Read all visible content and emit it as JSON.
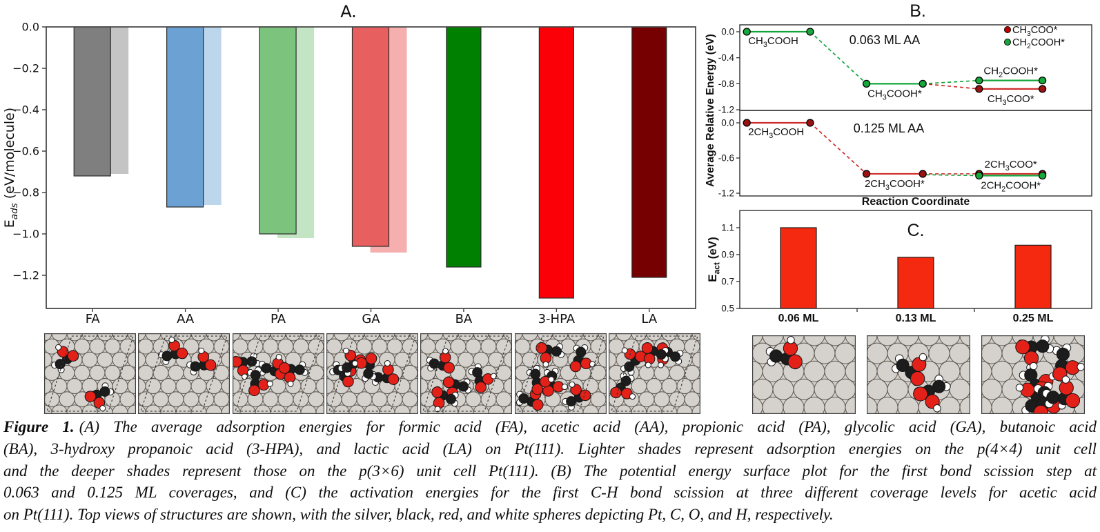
{
  "caption": {
    "lead": "Figure 1.",
    "lines": [
      "(A) The average adsorption energies for formic acid (FA), acetic acid (AA), propionic acid (PA), glycolic acid (GA), butanoic acid",
      "(BA), 3-hydroxy propanoic acid (3-HPA), and lactic acid (LA) on Pt(111). Lighter shades represent adsorption energies on the p(4×4) unit cell",
      "and the deeper shades represent those on the p(3×6) unit cell Pt(111). (B) The potential energy surface plot for the first bond scission step at",
      "0.063 and 0.125 ML coverages, and (C) the activation energies for the first C-H bond scission at three different coverage levels for acetic acid",
      "on Pt(111). Top views of structures are shown, with the silver, black, red, and white spheres depicting Pt, C, O, and H, respectively."
    ]
  },
  "chart_data": [
    {
      "id": "A",
      "type": "bar",
      "panel_label": "A.",
      "ylabel": {
        "prefix": "E",
        "sub": "ads",
        "suffix": " (eV/molecule)"
      },
      "ylim": [
        -1.36,
        0
      ],
      "yticks": [
        0.0,
        -0.2,
        -0.4,
        -0.6,
        -0.8,
        -1.0,
        -1.2
      ],
      "ytick_labels": [
        "0.0",
        "−0.2",
        "−0.4",
        "−0.6",
        "−0.8",
        "−1.0",
        "−1.2"
      ],
      "categories": [
        "FA",
        "AA",
        "PA",
        "GA",
        "BA",
        "3-HPA",
        "LA"
      ],
      "series": [
        {
          "name": "deeper shade p(3×6)",
          "values": [
            -0.72,
            -0.87,
            -1.0,
            -1.06,
            -1.16,
            -1.31,
            -1.21
          ],
          "colors": [
            "#7f7f7f",
            "#6ba1d3",
            "#7cc47d",
            "#e85f5f",
            "#008000",
            "#fb0007",
            "#760001"
          ]
        },
        {
          "name": "lighter shade p(4×4)",
          "values": [
            -0.71,
            -0.86,
            -1.02,
            -1.09,
            null,
            null,
            null
          ],
          "colors": [
            "#c4c4c4",
            "#bcd6ec",
            "#c3e5c3",
            "#f5afaf",
            null,
            null,
            null
          ]
        }
      ],
      "grid": false
    },
    {
      "id": "B1",
      "type": "line",
      "title": "0.063 ML AA",
      "ylim": [
        -1.2,
        0.11
      ],
      "yticks": [
        0.0,
        -0.4,
        -0.8,
        -1.2
      ],
      "ytick_labels": [
        "0.0",
        "-0.4",
        "-0.8",
        "-1.2"
      ],
      "legend": [
        {
          "label": "CH₃COO*",
          "color": "red"
        },
        {
          "label": "CH₂COOH*",
          "color": "green"
        }
      ],
      "legend_position": "top-right",
      "states": [
        {
          "label": "CH₃COOH",
          "energy": 0.0,
          "x": [
            0.02,
            0.2
          ],
          "color": "green",
          "label_pos": "below-start"
        },
        {
          "label": "CH₃COOH*",
          "energy": -0.8,
          "x": [
            0.36,
            0.52
          ],
          "color": "green",
          "label_pos": "below"
        },
        {
          "label": "CH₂COOH*",
          "energy": -0.75,
          "x": [
            0.68,
            0.86
          ],
          "color": "green",
          "label_pos": "above"
        },
        {
          "label": "CH₃COO*",
          "energy": -0.88,
          "x": [
            0.68,
            0.86
          ],
          "color": "red",
          "label_pos": "below"
        }
      ],
      "connections": [
        {
          "x1": 0.2,
          "e1": 0.0,
          "x2": 0.36,
          "e2": -0.8,
          "color": "green"
        },
        {
          "x1": 0.52,
          "e1": -0.8,
          "x2": 0.68,
          "e2": -0.75,
          "color": "green"
        },
        {
          "x1": 0.52,
          "e1": -0.8,
          "x2": 0.68,
          "e2": -0.88,
          "color": "red"
        }
      ]
    },
    {
      "id": "B2",
      "type": "line",
      "title": "0.125 ML AA",
      "ylim": [
        -1.2,
        0.21
      ],
      "yticks": [
        0.0,
        -0.6,
        -1.2
      ],
      "ytick_labels": [
        "0.0",
        "-0.6",
        "-1.2"
      ],
      "states": [
        {
          "label": "2CH₃COOH",
          "energy": 0.0,
          "x": [
            0.02,
            0.2
          ],
          "color": "red",
          "label_pos": "below-start"
        },
        {
          "label": "2CH₃COOH*",
          "energy": -0.87,
          "x": [
            0.36,
            0.52
          ],
          "color": "red",
          "label_pos": "below"
        },
        {
          "label": "2CH₃COO*",
          "energy": -0.87,
          "x": [
            0.68,
            0.86
          ],
          "color": "red",
          "label_pos": "above"
        },
        {
          "label": "2CH₂COOH*",
          "energy": -0.9,
          "x": [
            0.68,
            0.86
          ],
          "color": "green",
          "label_pos": "below"
        }
      ],
      "connections": [
        {
          "x1": 0.2,
          "e1": 0.0,
          "x2": 0.36,
          "e2": -0.87,
          "color": "red"
        },
        {
          "x1": 0.52,
          "e1": -0.87,
          "x2": 0.68,
          "e2": -0.87,
          "color": "red"
        },
        {
          "x1": 0.53,
          "e1": -0.885,
          "x2": 0.68,
          "e2": -0.9,
          "color": "green"
        }
      ],
      "xlabel": "Reaction Coordinate"
    },
    {
      "id": "C",
      "type": "bar",
      "panel_label": "C.",
      "ylabel": {
        "prefix": "E",
        "sub": "act",
        "suffix": " (eV)"
      },
      "ylim": [
        0.5,
        1.23
      ],
      "yticks": [
        1.1,
        0.9,
        0.7,
        0.5
      ],
      "ytick_labels": [
        "1.1",
        "0.9",
        "0.7",
        "0.5"
      ],
      "categories": [
        "0.06 ML",
        "0.13 ML",
        "0.25 ML"
      ],
      "values": [
        1.1,
        0.88,
        0.97
      ],
      "bar_color": "#f5290f",
      "grid": false
    }
  ],
  "panel_b": {
    "panel_label": "B.",
    "ylabel": "Average Relative Energy (eV)",
    "xlabel": "Reaction Coordinate",
    "palette": {
      "red_line": "#cf2b2b",
      "red_marker": "#9c1111",
      "green_line": "#12a53a",
      "green_marker": "#16a83a"
    }
  },
  "structures": {
    "row_a": {
      "labels": [
        "FA",
        "AA",
        "PA",
        "GA",
        "BA",
        "3-HPA",
        "LA"
      ],
      "molecule_counts": [
        2,
        2,
        4,
        4,
        4,
        6,
        4
      ],
      "unit_cell_shown": true
    },
    "row_c": {
      "labels": [
        "0.06 ML",
        "0.13 ML",
        "0.25 ML"
      ],
      "molecule_counts": [
        1,
        2,
        6
      ],
      "unit_cell_shown": false
    },
    "sphere_legend": {
      "Pt": "#d5d1cc",
      "C": "#1c1c1c",
      "O": "#e32119",
      "H": "#ffffff"
    }
  }
}
